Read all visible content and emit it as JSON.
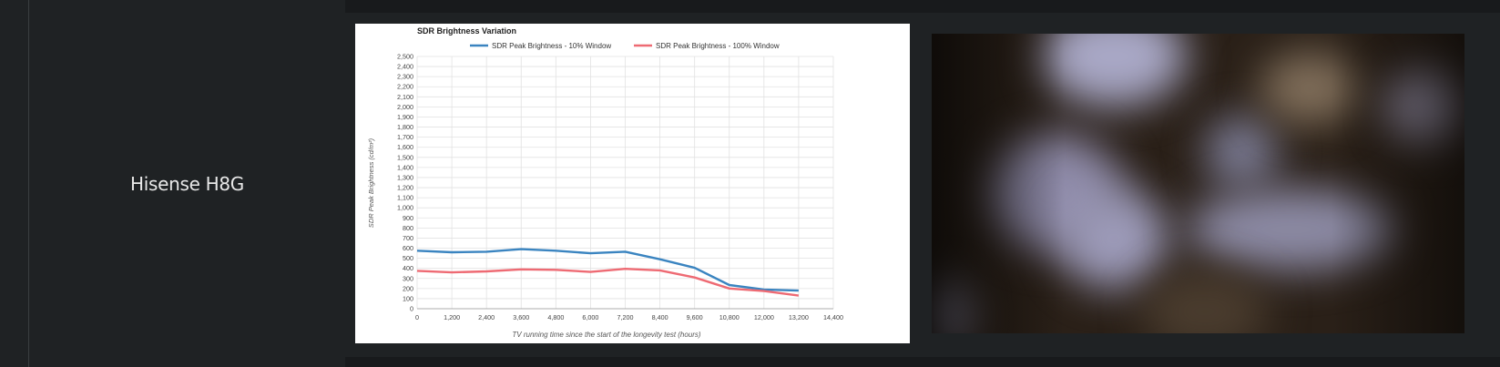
{
  "product": {
    "name": "Hisense H8G"
  },
  "chart_data": {
    "type": "line",
    "title": "SDR Brightness Variation",
    "xlabel": "TV running time since the start of the longevity test (hours)",
    "ylabel": "SDR Peak Brightness (cd/m²)",
    "xlim": [
      0,
      14400
    ],
    "ylim": [
      0,
      2500
    ],
    "x_ticks": [
      "0",
      "1,200",
      "2,400",
      "3,600",
      "4,800",
      "6,000",
      "7,200",
      "8,400",
      "9,600",
      "10,800",
      "12,000",
      "13,200",
      "14,400"
    ],
    "y_ticks": [
      "0",
      "100",
      "200",
      "300",
      "400",
      "500",
      "600",
      "700",
      "800",
      "900",
      "1,000",
      "1,100",
      "1,200",
      "1,300",
      "1,400",
      "1,500",
      "1,600",
      "1,700",
      "1,800",
      "1,900",
      "2,000",
      "2,100",
      "2,200",
      "2,300",
      "2,400",
      "2,500"
    ],
    "x": [
      0,
      1200,
      2400,
      3600,
      4800,
      6000,
      7200,
      8400,
      9600,
      10800,
      12000,
      13200
    ],
    "series": [
      {
        "name": "SDR Peak Brightness - 10% Window",
        "color": "#3a84c0",
        "values": [
          575,
          560,
          565,
          590,
          575,
          550,
          565,
          490,
          405,
          235,
          190,
          180
        ]
      },
      {
        "name": "SDR Peak Brightness - 100% Window",
        "color": "#ee6a73",
        "values": [
          375,
          360,
          370,
          390,
          385,
          365,
          395,
          380,
          310,
          200,
          175,
          130
        ]
      }
    ],
    "grid": true,
    "legend_position": "top"
  }
}
